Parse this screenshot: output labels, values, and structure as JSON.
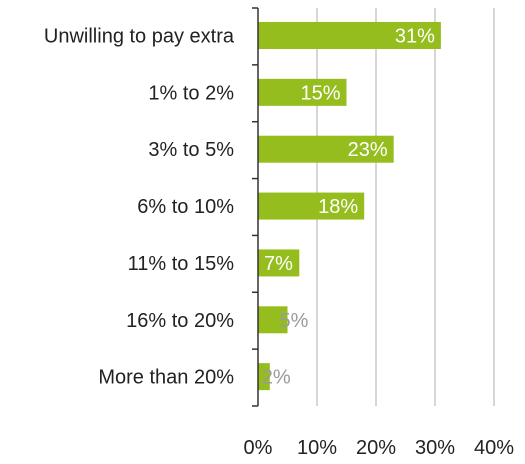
{
  "chart_data": {
    "type": "bar",
    "orientation": "horizontal",
    "title": "",
    "xlabel": "",
    "ylabel": "",
    "categories": [
      "Unwilling to pay extra",
      "1% to 2%",
      "3% to 5%",
      "6% to 10%",
      "11% to 15%",
      "16% to 20%",
      "More than 20%"
    ],
    "values": [
      31,
      15,
      23,
      18,
      7,
      5,
      2
    ],
    "data_labels": [
      "31%",
      "15%",
      "23%",
      "18%",
      "7%",
      "5%",
      "2%"
    ],
    "xlim": [
      0,
      40
    ],
    "x_ticks": [
      0,
      10,
      20,
      30,
      40
    ],
    "x_tick_labels": [
      "0%",
      "10%",
      "20%",
      "30%",
      "40%"
    ],
    "grid": true,
    "legend": "none",
    "colors": {
      "bar": "#96bd1e",
      "grid": "#c8c8c8",
      "axis": "#333333",
      "label_inside": "#ffffff",
      "label_outside": "#9a9a9a"
    }
  }
}
